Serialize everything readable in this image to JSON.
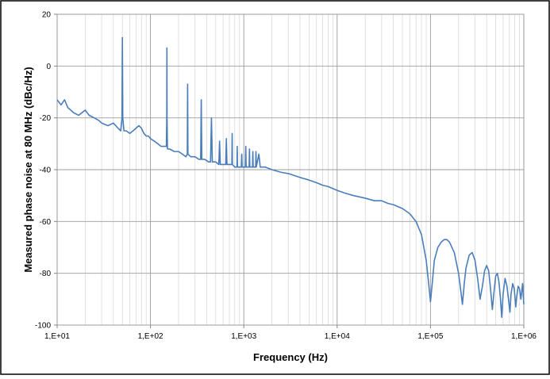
{
  "chart_data": {
    "type": "line",
    "title": "",
    "xlabel": "Frequency  (Hz)",
    "ylabel": "Measured phase noise at 80 MHz  (dBc/Hz)",
    "x_scale": "log",
    "xlim": [
      10,
      1000000
    ],
    "ylim": [
      -100,
      20
    ],
    "x_ticks": [
      10,
      100,
      1000,
      10000,
      100000,
      1000000
    ],
    "x_tick_labels": [
      "1,E+01",
      "1,E+02",
      "1,E+03",
      "1,E+04",
      "1,E+05",
      "1,E+06"
    ],
    "y_ticks": [
      20,
      0,
      -20,
      -40,
      -60,
      -80,
      -100
    ],
    "y_tick_labels": [
      "20",
      "0",
      "-20",
      "-40",
      "-60",
      "-80",
      "-100"
    ],
    "grid": true,
    "legend": "none",
    "line_color": "#4a7ebb",
    "series": [
      {
        "values": [
          [
            10,
            -13
          ],
          [
            11,
            -15
          ],
          [
            12,
            -13
          ],
          [
            13,
            -16
          ],
          [
            14,
            -17
          ],
          [
            15,
            -18
          ],
          [
            17,
            -19
          ],
          [
            20,
            -17
          ],
          [
            22,
            -19
          ],
          [
            25,
            -20
          ],
          [
            28,
            -21
          ],
          [
            30,
            -22
          ],
          [
            35,
            -23
          ],
          [
            40,
            -22
          ],
          [
            45,
            -24
          ],
          [
            48,
            -25
          ],
          [
            49.5,
            -20
          ],
          [
            50,
            11
          ],
          [
            50.5,
            -20
          ],
          [
            52,
            -25
          ],
          [
            55,
            -25
          ],
          [
            60,
            -26
          ],
          [
            65,
            -25
          ],
          [
            70,
            -24
          ],
          [
            75,
            -23
          ],
          [
            80,
            -24
          ],
          [
            85,
            -26
          ],
          [
            90,
            -27
          ],
          [
            95,
            -27
          ],
          [
            100,
            -28
          ],
          [
            110,
            -29
          ],
          [
            120,
            -30
          ],
          [
            130,
            -31
          ],
          [
            140,
            -31
          ],
          [
            148,
            -31
          ],
          [
            149.5,
            -20
          ],
          [
            150,
            7
          ],
          [
            150.5,
            -20
          ],
          [
            152,
            -32
          ],
          [
            160,
            -32
          ],
          [
            180,
            -33
          ],
          [
            200,
            -33
          ],
          [
            220,
            -34
          ],
          [
            240,
            -35
          ],
          [
            248,
            -34
          ],
          [
            250,
            -7
          ],
          [
            252,
            -34
          ],
          [
            270,
            -35
          ],
          [
            300,
            -35
          ],
          [
            330,
            -36
          ],
          [
            345,
            -36
          ],
          [
            350,
            -13
          ],
          [
            355,
            -36
          ],
          [
            380,
            -36
          ],
          [
            420,
            -37
          ],
          [
            440,
            -37
          ],
          [
            450,
            -20
          ],
          [
            460,
            -37
          ],
          [
            500,
            -37
          ],
          [
            540,
            -38
          ],
          [
            550,
            -29
          ],
          [
            560,
            -38
          ],
          [
            600,
            -38
          ],
          [
            640,
            -38
          ],
          [
            650,
            -28
          ],
          [
            660,
            -38
          ],
          [
            700,
            -38
          ],
          [
            745,
            -38
          ],
          [
            750,
            -26
          ],
          [
            755,
            -38
          ],
          [
            800,
            -39
          ],
          [
            845,
            -39
          ],
          [
            850,
            -31
          ],
          [
            855,
            -39
          ],
          [
            900,
            -39
          ],
          [
            940,
            -39
          ],
          [
            950,
            -34
          ],
          [
            960,
            -39
          ],
          [
            1000,
            -39
          ],
          [
            1040,
            -39
          ],
          [
            1050,
            -31
          ],
          [
            1060,
            -39
          ],
          [
            1100,
            -39
          ],
          [
            1140,
            -39
          ],
          [
            1150,
            -32
          ],
          [
            1160,
            -39
          ],
          [
            1240,
            -39
          ],
          [
            1250,
            -33
          ],
          [
            1260,
            -39
          ],
          [
            1340,
            -39
          ],
          [
            1350,
            -33
          ],
          [
            1360,
            -39
          ],
          [
            1450,
            -34
          ],
          [
            1500,
            -39
          ],
          [
            1700,
            -39
          ],
          [
            2000,
            -40
          ],
          [
            2500,
            -41
          ],
          [
            3000,
            -41.5
          ],
          [
            4000,
            -43
          ],
          [
            5000,
            -44
          ],
          [
            6000,
            -45
          ],
          [
            7000,
            -46
          ],
          [
            8000,
            -46.5
          ],
          [
            10000,
            -48
          ],
          [
            12000,
            -49
          ],
          [
            15000,
            -50
          ],
          [
            20000,
            -51
          ],
          [
            25000,
            -52
          ],
          [
            30000,
            -52
          ],
          [
            35000,
            -53
          ],
          [
            40000,
            -53.5
          ],
          [
            50000,
            -55
          ],
          [
            60000,
            -57
          ],
          [
            70000,
            -60
          ],
          [
            80000,
            -65
          ],
          [
            90000,
            -75
          ],
          [
            95000,
            -83
          ],
          [
            100000,
            -91
          ],
          [
            105000,
            -83
          ],
          [
            110000,
            -75
          ],
          [
            120000,
            -70
          ],
          [
            130000,
            -68
          ],
          [
            140000,
            -67
          ],
          [
            150000,
            -67
          ],
          [
            160000,
            -68
          ],
          [
            180000,
            -72
          ],
          [
            200000,
            -80
          ],
          [
            210000,
            -86
          ],
          [
            220000,
            -92
          ],
          [
            230000,
            -84
          ],
          [
            240000,
            -78
          ],
          [
            260000,
            -73
          ],
          [
            280000,
            -72
          ],
          [
            300000,
            -75
          ],
          [
            320000,
            -82
          ],
          [
            340000,
            -90
          ],
          [
            360000,
            -85
          ],
          [
            380000,
            -79
          ],
          [
            400000,
            -77
          ],
          [
            420000,
            -79
          ],
          [
            440000,
            -86
          ],
          [
            460000,
            -94
          ],
          [
            480000,
            -87
          ],
          [
            500000,
            -81
          ],
          [
            520000,
            -80
          ],
          [
            540000,
            -83
          ],
          [
            560000,
            -89
          ],
          [
            580000,
            -97
          ],
          [
            600000,
            -88
          ],
          [
            630000,
            -82
          ],
          [
            660000,
            -85
          ],
          [
            690000,
            -91
          ],
          [
            710000,
            -95
          ],
          [
            730000,
            -88
          ],
          [
            760000,
            -84
          ],
          [
            790000,
            -86
          ],
          [
            820000,
            -93
          ],
          [
            840000,
            -89
          ],
          [
            870000,
            -85
          ],
          [
            900000,
            -86
          ],
          [
            930000,
            -90
          ],
          [
            950000,
            -87
          ],
          [
            970000,
            -84
          ],
          [
            1000000,
            -92
          ]
        ]
      }
    ]
  }
}
